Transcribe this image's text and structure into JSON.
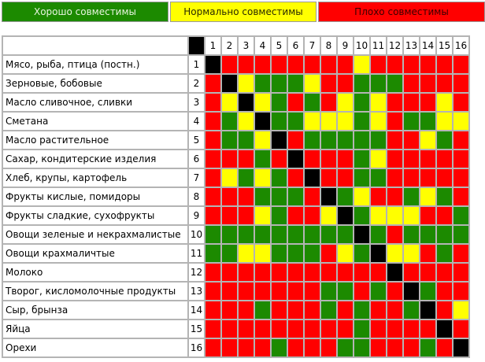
{
  "legend": {
    "good": "Хорошо совместимы",
    "normal": "Нормально совместимы",
    "bad": "Плохо совместимы"
  },
  "colors": {
    "good": "#1c8a00",
    "normal": "#ffff00",
    "bad": "#ff0000",
    "self": "#000000"
  },
  "columns": [
    "1",
    "2",
    "3",
    "4",
    "5",
    "6",
    "7",
    "8",
    "9",
    "10",
    "11",
    "12",
    "13",
    "14",
    "15",
    "16"
  ],
  "rows": [
    {
      "label": "Мясо, рыба, птица (постн.)",
      "num": "1"
    },
    {
      "label": "Зерновые, бобовые",
      "num": "2"
    },
    {
      "label": "Масло сливочное, сливки",
      "num": "3"
    },
    {
      "label": "Сметана",
      "num": "4"
    },
    {
      "label": "Масло растительное",
      "num": "5"
    },
    {
      "label": "Сахар, кондитерские изделия",
      "num": "6"
    },
    {
      "label": "Хлеб, крупы, картофель",
      "num": "7"
    },
    {
      "label": "Фрукты кислые, помидоры",
      "num": "8"
    },
    {
      "label": "Фрукты сладкие, сухофрукты",
      "num": "9"
    },
    {
      "label": "Овощи зеленые и некрахмалистые",
      "num": "10"
    },
    {
      "label": "Овощи крахмаличтые",
      "num": "11"
    },
    {
      "label": "Молоко",
      "num": "12"
    },
    {
      "label": "Творог, кисломолочные продукты",
      "num": "13"
    },
    {
      "label": "Сыр, брынза",
      "num": "14"
    },
    {
      "label": "Яйца",
      "num": "15"
    },
    {
      "label": "Орехи",
      "num": "16"
    }
  ],
  "matrix": [
    "krrrrrrrryrrrrrr",
    "rkygggyrrgggrrrr",
    "rykygrgrygyrrryr",
    "rgykggyyygyrggyy",
    "rggykrgggggrrygr",
    "rrrgrkrrrgyrrrrr",
    "rygygrkrrggrrrrr",
    "rrrgggrkgyrrgygr",
    "rrrygrrykgyyyrrg",
    "gggggggggkgrgggg",
    "ggyygggrygkyyrgr",
    "rrrrrrrrrrrkrrrr",
    "rrrrrrrggrgrkgrr",
    "rrrgrrrgrgrrgkry",
    "rrrrrrrrrgrrrrkr",
    "rrrrgrrrggrrrgrk"
  ]
}
